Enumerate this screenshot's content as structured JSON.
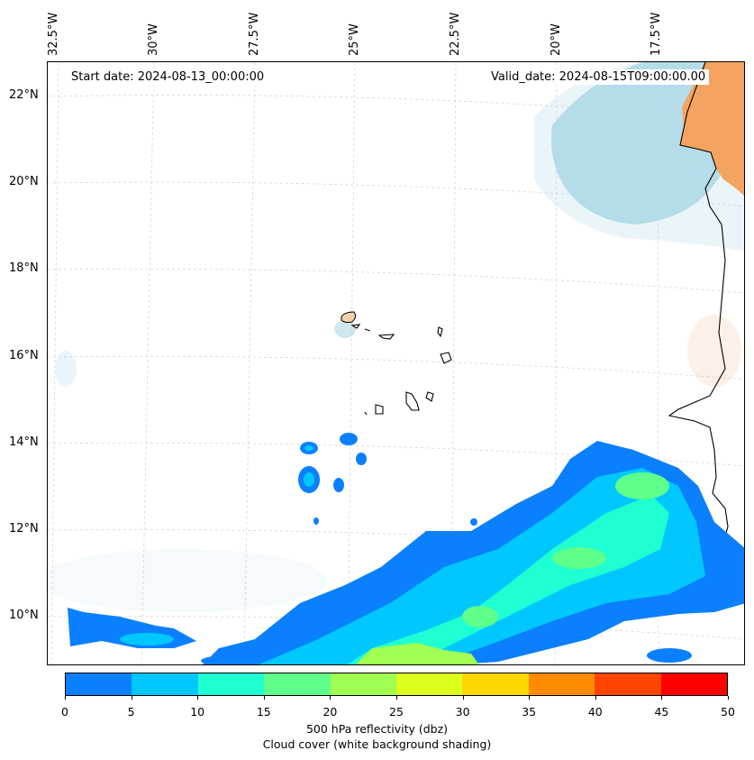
{
  "map": {
    "start_label": "Start date: 2024-08-13_00:00:00",
    "valid_label": "Valid_date: 2024-08-15T09:00:00.00",
    "longitude_labels": [
      "32.5°W",
      "30°W",
      "27.5°W",
      "25°W",
      "22.5°W",
      "20°W",
      "17.5°W"
    ],
    "latitude_labels": [
      "22°N",
      "20°N",
      "18°N",
      "16°N",
      "14°N",
      "12°N",
      "10°N"
    ],
    "land_color": "#f4a460",
    "cloud_color": "#add8e6",
    "coastline_color": "#000000",
    "gridline_color": "#cccccc"
  },
  "colorbar": {
    "ticks": [
      "0",
      "5",
      "10",
      "15",
      "20",
      "25",
      "30",
      "35",
      "40",
      "45",
      "50"
    ],
    "colors": [
      "#0a80ff",
      "#00c8ff",
      "#1effd2",
      "#5eff8a",
      "#a0ff50",
      "#dcff1e",
      "#ffd700",
      "#ff8c00",
      "#ff4500",
      "#ff0000"
    ],
    "label_line1": "500 hPa reflectivity (dbz)",
    "label_line2": "Cloud cover (white background shading)"
  }
}
